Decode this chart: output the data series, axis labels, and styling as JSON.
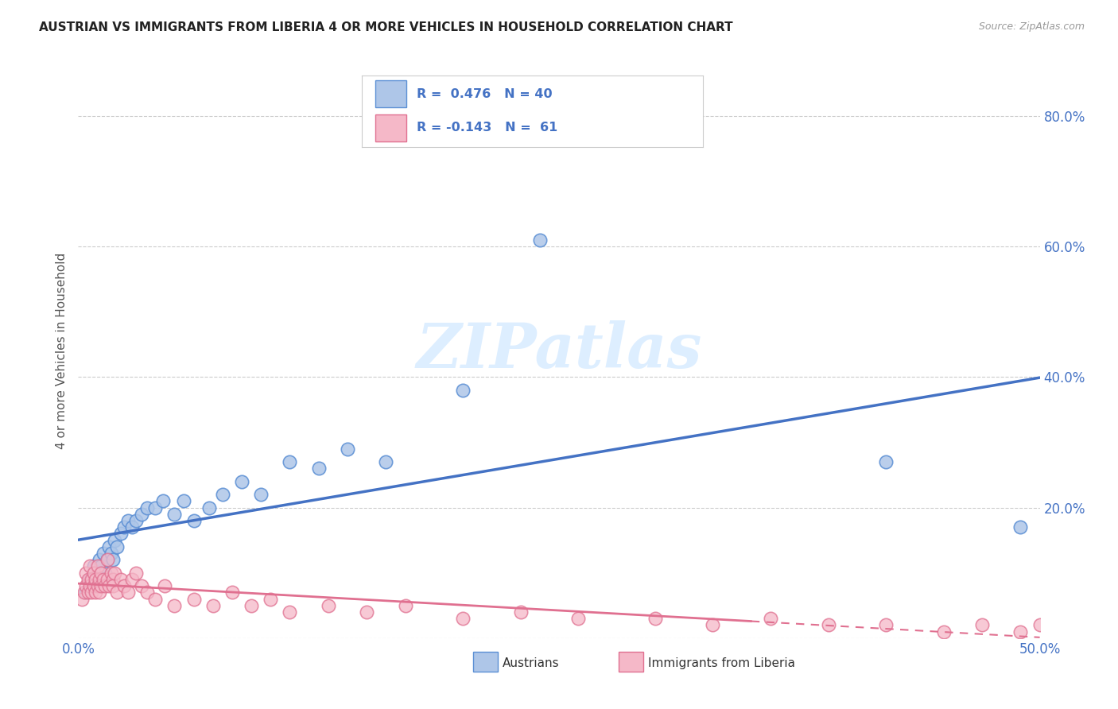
{
  "title": "AUSTRIAN VS IMMIGRANTS FROM LIBERIA 4 OR MORE VEHICLES IN HOUSEHOLD CORRELATION CHART",
  "source": "Source: ZipAtlas.com",
  "ylabel": "4 or more Vehicles in Household",
  "xlim": [
    0.0,
    0.5
  ],
  "ylim": [
    0.0,
    0.88
  ],
  "yticks": [
    0.0,
    0.2,
    0.4,
    0.6,
    0.8
  ],
  "ytick_labels": [
    "",
    "20.0%",
    "40.0%",
    "60.0%",
    "80.0%"
  ],
  "xticks": [
    0.0,
    0.1,
    0.2,
    0.3,
    0.4,
    0.5
  ],
  "xtick_labels": [
    "0.0%",
    "",
    "",
    "",
    "",
    "50.0%"
  ],
  "blue_R": 0.476,
  "blue_N": 40,
  "pink_R": -0.143,
  "pink_N": 61,
  "blue_color": "#aec6e8",
  "blue_edge_color": "#5b8fd4",
  "blue_line_color": "#4472c4",
  "pink_color": "#f5b8c8",
  "pink_edge_color": "#e07090",
  "pink_line_color": "#e07090",
  "watermark_color": "#ddeeff",
  "legend_label_blue": "Austrians",
  "legend_label_pink": "Immigrants from Liberia",
  "blue_scatter_x": [
    0.004,
    0.006,
    0.007,
    0.008,
    0.009,
    0.01,
    0.011,
    0.012,
    0.013,
    0.014,
    0.015,
    0.016,
    0.017,
    0.018,
    0.019,
    0.02,
    0.022,
    0.024,
    0.026,
    0.028,
    0.03,
    0.033,
    0.036,
    0.04,
    0.044,
    0.05,
    0.055,
    0.06,
    0.068,
    0.075,
    0.085,
    0.095,
    0.11,
    0.125,
    0.14,
    0.16,
    0.2,
    0.24,
    0.42,
    0.49
  ],
  "blue_scatter_y": [
    0.07,
    0.09,
    0.08,
    0.11,
    0.1,
    0.09,
    0.12,
    0.11,
    0.13,
    0.1,
    0.12,
    0.14,
    0.13,
    0.12,
    0.15,
    0.14,
    0.16,
    0.17,
    0.18,
    0.17,
    0.18,
    0.19,
    0.2,
    0.2,
    0.21,
    0.19,
    0.21,
    0.18,
    0.2,
    0.22,
    0.24,
    0.22,
    0.27,
    0.26,
    0.29,
    0.27,
    0.38,
    0.61,
    0.27,
    0.17
  ],
  "pink_scatter_x": [
    0.002,
    0.003,
    0.004,
    0.004,
    0.005,
    0.005,
    0.006,
    0.006,
    0.007,
    0.007,
    0.008,
    0.008,
    0.009,
    0.009,
    0.01,
    0.01,
    0.011,
    0.011,
    0.012,
    0.012,
    0.013,
    0.014,
    0.015,
    0.015,
    0.016,
    0.017,
    0.018,
    0.018,
    0.019,
    0.02,
    0.022,
    0.024,
    0.026,
    0.028,
    0.03,
    0.033,
    0.036,
    0.04,
    0.045,
    0.05,
    0.06,
    0.07,
    0.08,
    0.09,
    0.1,
    0.11,
    0.13,
    0.15,
    0.17,
    0.2,
    0.23,
    0.26,
    0.3,
    0.33,
    0.36,
    0.39,
    0.42,
    0.45,
    0.47,
    0.49,
    0.5
  ],
  "pink_scatter_y": [
    0.06,
    0.07,
    0.08,
    0.1,
    0.07,
    0.09,
    0.08,
    0.11,
    0.07,
    0.09,
    0.08,
    0.1,
    0.07,
    0.09,
    0.08,
    0.11,
    0.07,
    0.09,
    0.1,
    0.08,
    0.09,
    0.08,
    0.09,
    0.12,
    0.08,
    0.1,
    0.09,
    0.08,
    0.1,
    0.07,
    0.09,
    0.08,
    0.07,
    0.09,
    0.1,
    0.08,
    0.07,
    0.06,
    0.08,
    0.05,
    0.06,
    0.05,
    0.07,
    0.05,
    0.06,
    0.04,
    0.05,
    0.04,
    0.05,
    0.03,
    0.04,
    0.03,
    0.03,
    0.02,
    0.03,
    0.02,
    0.02,
    0.01,
    0.02,
    0.01,
    0.02
  ],
  "background_color": "#ffffff",
  "grid_color": "#cccccc"
}
